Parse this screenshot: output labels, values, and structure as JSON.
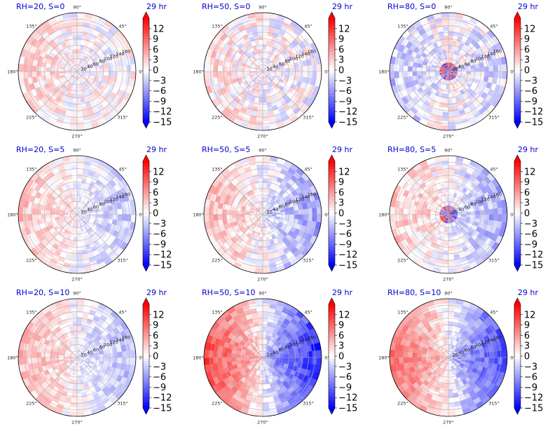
{
  "figure": {
    "colormap": [
      "#0000ff",
      "#ffffff",
      "#ff0000"
    ],
    "colorbar": {
      "ticks": [
        "12",
        "9",
        "6",
        "3",
        "0",
        "−3",
        "−6",
        "−9",
        "−12",
        "−15"
      ],
      "range": [
        -15,
        15
      ]
    },
    "angle_labels": [
      "0°",
      "45°",
      "90°",
      "135°",
      "180°",
      "225°",
      "270°",
      "315°"
    ],
    "radial_labels": [
      "20",
      "40",
      "60",
      "80",
      "100",
      "120",
      "140",
      "160"
    ]
  },
  "chart_data": [
    {
      "type": "heatmap",
      "projection": "polar",
      "title_left": "RH=20, S=0",
      "title_right": "29 hr",
      "pattern": {
        "east": 0.3,
        "west": 2.5,
        "noise": 3
      },
      "rlim": [
        0,
        180
      ],
      "grid": true
    },
    {
      "type": "heatmap",
      "projection": "polar",
      "title_left": "RH=50, S=0",
      "title_right": "29 hr",
      "pattern": {
        "east": -0.5,
        "west": 2.0,
        "noise": 3.5
      },
      "rlim": [
        0,
        180
      ],
      "grid": true
    },
    {
      "type": "heatmap",
      "projection": "polar",
      "title_left": "RH=80, S=0",
      "title_right": "29 hr",
      "pattern": {
        "east": -2.5,
        "west": -3.0,
        "noise": 3.5,
        "core": 10
      },
      "rlim": [
        0,
        180
      ],
      "grid": true
    },
    {
      "type": "heatmap",
      "projection": "polar",
      "title_left": "RH=20, S=5",
      "title_right": "29 hr",
      "pattern": {
        "east": -3.0,
        "west": 3.5,
        "noise": 2.5
      },
      "rlim": [
        0,
        180
      ],
      "grid": true
    },
    {
      "type": "heatmap",
      "projection": "polar",
      "title_left": "RH=50, S=5",
      "title_right": "29 hr",
      "pattern": {
        "east": -5.5,
        "west": 4.0,
        "noise": 3
      },
      "rlim": [
        0,
        180
      ],
      "grid": true
    },
    {
      "type": "heatmap",
      "projection": "polar",
      "title_left": "RH=80, S=5",
      "title_right": "29 hr",
      "pattern": {
        "east": -5.0,
        "west": 3.0,
        "noise": 3,
        "core": 10
      },
      "rlim": [
        0,
        180
      ],
      "grid": true
    },
    {
      "type": "heatmap",
      "projection": "polar",
      "title_left": "RH=20, S=10",
      "title_right": "29 hr",
      "pattern": {
        "east": -4.0,
        "west": 4.0,
        "noise": 2.5
      },
      "rlim": [
        0,
        180
      ],
      "grid": true
    },
    {
      "type": "heatmap",
      "projection": "polar",
      "title_left": "RH=50, S=10",
      "title_right": "29 hr",
      "pattern": {
        "east": -13.0,
        "west": 11.0,
        "noise": 2.5
      },
      "rlim": [
        0,
        180
      ],
      "grid": true
    },
    {
      "type": "heatmap",
      "projection": "polar",
      "title_left": "RH=80, S=10",
      "title_right": "29 hr",
      "pattern": {
        "east": -11.0,
        "west": 9.0,
        "noise": 2.5
      },
      "rlim": [
        0,
        180
      ],
      "grid": true
    }
  ]
}
